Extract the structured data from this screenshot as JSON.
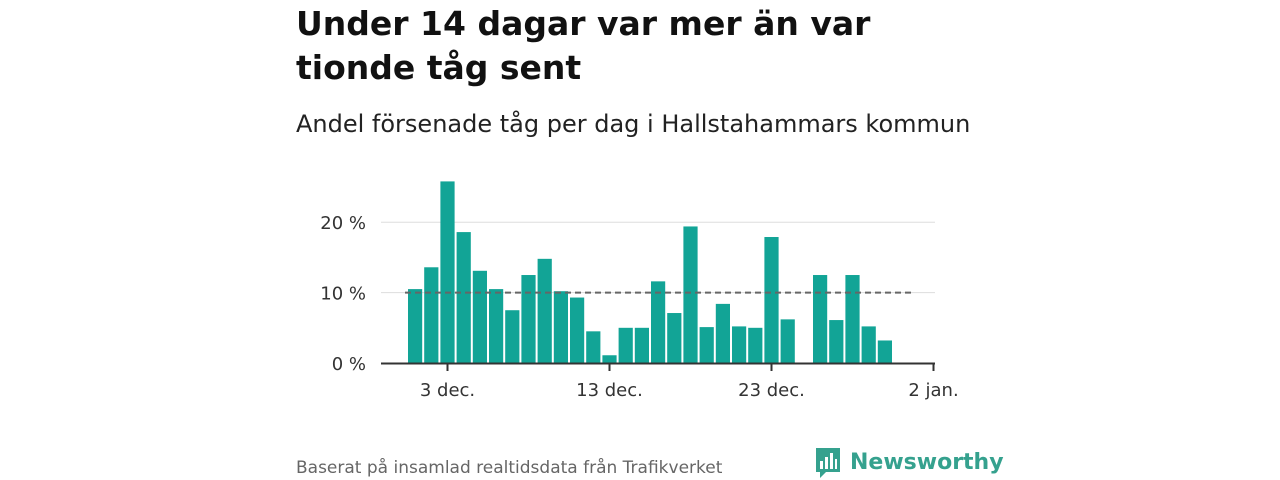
{
  "title": "Under 14 dagar var mer än var tionde tåg sent",
  "subtitle": "Andel försenade tåg per dag i Hallstahammars kommun",
  "source": "Baserat på insamlad realtidsdata från Trafikverket",
  "brand": {
    "name": "Newsworthy",
    "icon": "newsworthy-logo-icon",
    "color": "#35a18e"
  },
  "colors": {
    "bar": "#12a496",
    "grid": "#dddddd",
    "axis": "#333333",
    "reference": "#666666"
  },
  "chart_data": {
    "type": "bar",
    "x": [
      "2024-12-01",
      "2024-12-02",
      "2024-12-03",
      "2024-12-04",
      "2024-12-05",
      "2024-12-06",
      "2024-12-07",
      "2024-12-08",
      "2024-12-09",
      "2024-12-10",
      "2024-12-11",
      "2024-12-12",
      "2024-12-13",
      "2024-12-14",
      "2024-12-15",
      "2024-12-16",
      "2024-12-17",
      "2024-12-18",
      "2024-12-19",
      "2024-12-20",
      "2024-12-21",
      "2024-12-22",
      "2024-12-23",
      "2024-12-24",
      "2024-12-25",
      "2024-12-26",
      "2024-12-27",
      "2024-12-28",
      "2024-12-29",
      "2024-12-30",
      "2024-12-31"
    ],
    "values": [
      10.5,
      13.6,
      25.8,
      18.6,
      13.1,
      10.5,
      7.5,
      12.5,
      14.8,
      10.2,
      9.3,
      4.5,
      1.1,
      5.0,
      5.0,
      11.6,
      7.1,
      19.4,
      5.1,
      8.4,
      5.2,
      5.0,
      17.9,
      6.2,
      null,
      12.5,
      6.1,
      12.5,
      5.2,
      3.2,
      null
    ],
    "reference_line": 10,
    "ylim": [
      0,
      26
    ],
    "yticks": [
      0,
      10,
      20
    ],
    "ytick_labels": [
      "0 %",
      "10 %",
      "20 %"
    ],
    "xticks": [
      {
        "date": "2024-12-03",
        "label": "3 dec."
      },
      {
        "date": "2024-12-13",
        "label": "13 dec."
      },
      {
        "date": "2024-12-23",
        "label": "23 dec."
      },
      {
        "date": "2025-01-02",
        "label": "2 jan."
      }
    ],
    "xlabel": "",
    "ylabel": "",
    "grid": true
  }
}
